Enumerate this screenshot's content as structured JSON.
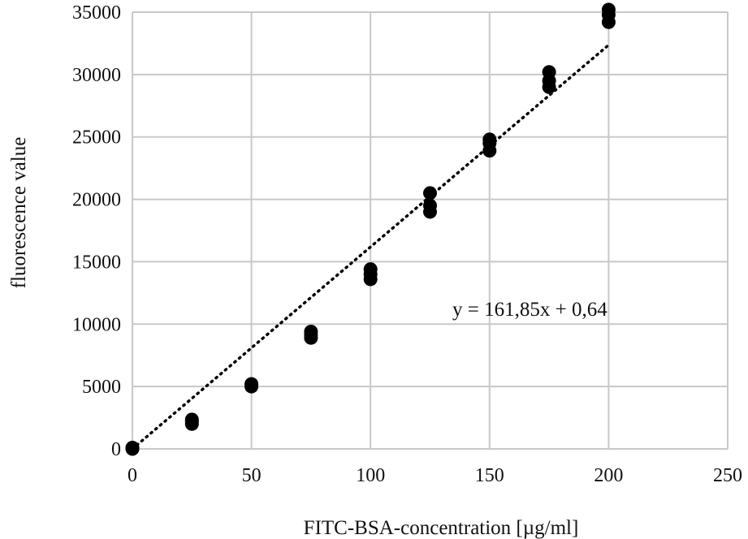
{
  "chart_data": {
    "type": "scatter",
    "xlabel": "FITC-BSA-concentration [µg/ml]",
    "ylabel": "fluorescence value",
    "xlim": [
      0,
      250
    ],
    "ylim": [
      0,
      35000
    ],
    "x_ticks": [
      0,
      50,
      100,
      150,
      200,
      250
    ],
    "y_ticks": [
      0,
      5000,
      10000,
      15000,
      20000,
      25000,
      30000,
      35000
    ],
    "grid": true,
    "legend": "none",
    "marker_color": "#000000",
    "series": [
      {
        "points": [
          {
            "x": 0,
            "y": 0
          },
          {
            "x": 0,
            "y": 50
          },
          {
            "x": 0,
            "y": 100
          },
          {
            "x": 25,
            "y": 2000
          },
          {
            "x": 25,
            "y": 2200
          },
          {
            "x": 25,
            "y": 2350
          },
          {
            "x": 50,
            "y": 5000
          },
          {
            "x": 50,
            "y": 5100
          },
          {
            "x": 50,
            "y": 5200
          },
          {
            "x": 75,
            "y": 8900
          },
          {
            "x": 75,
            "y": 9150
          },
          {
            "x": 75,
            "y": 9400
          },
          {
            "x": 100,
            "y": 13600
          },
          {
            "x": 100,
            "y": 14000
          },
          {
            "x": 100,
            "y": 14400
          },
          {
            "x": 125,
            "y": 19000
          },
          {
            "x": 125,
            "y": 19500
          },
          {
            "x": 125,
            "y": 20500
          },
          {
            "x": 150,
            "y": 23900
          },
          {
            "x": 150,
            "y": 24500
          },
          {
            "x": 150,
            "y": 24800
          },
          {
            "x": 175,
            "y": 29000
          },
          {
            "x": 175,
            "y": 29500
          },
          {
            "x": 175,
            "y": 30200
          },
          {
            "x": 200,
            "y": 34200
          },
          {
            "x": 200,
            "y": 34800
          },
          {
            "x": 200,
            "y": 35200
          }
        ]
      }
    ],
    "trendline": {
      "style": "dotted",
      "slope": 161.85,
      "intercept": 0.64,
      "x_range": [
        0,
        200
      ],
      "equation_label": "y = 161,85x + 0,64"
    }
  }
}
